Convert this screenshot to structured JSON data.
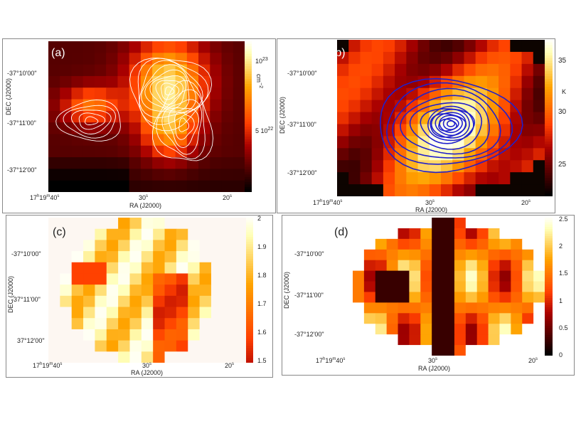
{
  "panels": [
    {
      "label": "(a)",
      "xlabel": "RA (J2000)",
      "ylabel": "DEC (J2000)",
      "xticks": [
        "17h19m40s",
        "30s",
        "20s"
      ],
      "yticks": [
        "-37°10'00\"",
        "-37°11'00\"",
        "-37°12'00\""
      ],
      "colorbar_ticks": [
        "10^23",
        "5 10^22"
      ],
      "colorbar_unit": "cm^-2",
      "contour_color": "#ffffff"
    },
    {
      "label": "(b)",
      "xlabel": "RA (J2000)",
      "ylabel": "DEC (J2000)",
      "xticks": [
        "17h19m40s",
        "30s",
        "20s"
      ],
      "yticks": [
        "-37°10'00\"",
        "-37°11'00\"",
        "-37°12'00\""
      ],
      "colorbar_ticks": [
        "35",
        "30",
        "25"
      ],
      "colorbar_unit": "K",
      "contour_color": "#2020cc"
    },
    {
      "label": "(c)",
      "xlabel": "RA (J2000)",
      "ylabel": "DEC (J2000)",
      "xticks": [
        "17h19m40s",
        "30s",
        "20s"
      ],
      "yticks": [
        "-37°10'00\"",
        "-37°11'00\"",
        "37°12'00\""
      ],
      "colorbar_ticks": [
        "2",
        "1.9",
        "1.8",
        "1.7",
        "1.6",
        "1.5"
      ]
    },
    {
      "label": "(d)",
      "xlabel": "RA (J2000)",
      "ylabel": "DEC (J2000)",
      "xticks": [
        "17h19m40s",
        "30s",
        "20s"
      ],
      "yticks": [
        "-37°10'00\"",
        "-37°11'00\"",
        "-37°12'00\""
      ],
      "colorbar_ticks": [
        "2.5",
        "2",
        "1.5",
        "1",
        "0.5",
        "0"
      ]
    }
  ]
}
